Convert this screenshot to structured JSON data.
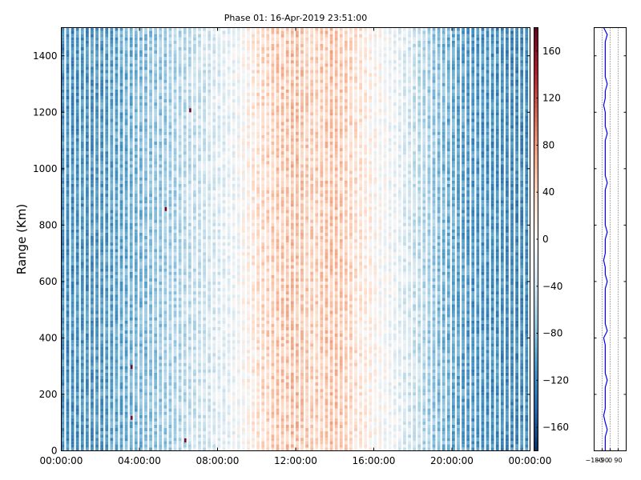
{
  "chart_data": [
    {
      "type": "heatmap",
      "title": "Phase 01: 16-Apr-2019 23:51:00",
      "ylabel": "Range (Km)",
      "xlabel": "",
      "x_tick_labels": [
        "00:00:00",
        "04:00:00",
        "08:00:00",
        "12:00:00",
        "16:00:00",
        "20:00:00",
        "00:00:00"
      ],
      "x_range_hours": [
        0,
        24
      ],
      "y_ticks": [
        0,
        200,
        400,
        600,
        800,
        1000,
        1200,
        1400
      ],
      "ylim": [
        0,
        1500
      ],
      "colorbar": {
        "range": [
          -180,
          180
        ],
        "ticks": [
          -160,
          -120,
          -80,
          -40,
          0,
          40,
          80,
          120,
          160
        ],
        "colormap": "RdBu_r"
      },
      "profile_mean_phase_by_hour": [
        -115,
        -110,
        -105,
        -95,
        -80,
        -70,
        -55,
        -40,
        -25,
        -10,
        25,
        45,
        55,
        40,
        55,
        30,
        10,
        -10,
        -35,
        -65,
        -90,
        -105,
        -110,
        -115
      ],
      "stripe_period_hours": 0.25,
      "notable_points": [
        {
          "x_hour": 6.55,
          "y_km": 1210,
          "phase": 175
        },
        {
          "x_hour": 5.3,
          "y_km": 860,
          "phase": 175
        },
        {
          "x_hour": 3.55,
          "y_km": 120,
          "phase": 170
        },
        {
          "x_hour": 6.3,
          "y_km": 40,
          "phase": 170
        },
        {
          "x_hour": 3.55,
          "y_km": 300,
          "phase": 175
        }
      ]
    },
    {
      "type": "line",
      "title": "",
      "x_tick_labels": [
        "−180",
        "−90",
        "0",
        "90"
      ],
      "x_ticks": [
        -180,
        -90,
        0,
        90
      ],
      "xlim": [
        -180,
        180
      ],
      "ylim": [
        0,
        1500
      ],
      "line_x_value": -55
    }
  ],
  "colors": {
    "line": "#0000ff",
    "axes": "#000000",
    "background": "#ffffff"
  }
}
